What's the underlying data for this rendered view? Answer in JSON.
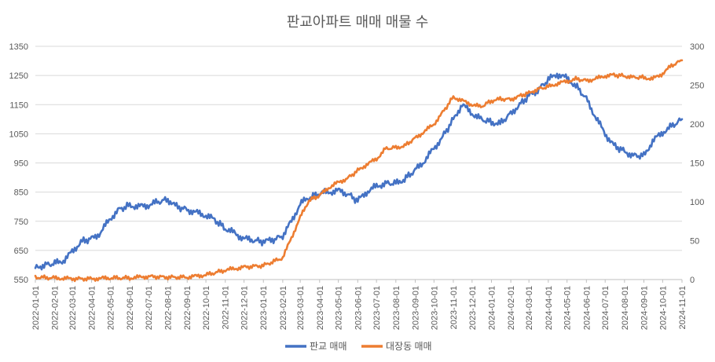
{
  "chart_data": {
    "type": "line",
    "title": "판교아파트 매매 매물 수",
    "legend_position": "bottom",
    "grid": true,
    "x_ticks": [
      "2022-01-01",
      "2022-02-01",
      "2022-03-01",
      "2022-04-01",
      "2022-05-01",
      "2022-06-01",
      "2022-07-01",
      "2022-08-01",
      "2022-09-01",
      "2022-10-01",
      "2022-11-01",
      "2022-12-01",
      "2023-01-01",
      "2023-02-01",
      "2023-03-01",
      "2023-04-01",
      "2023-05-01",
      "2023-06-01",
      "2023-07-01",
      "2023-08-01",
      "2023-09-01",
      "2023-10-01",
      "2023-11-01",
      "2023-12-01",
      "2024-01-01",
      "2024-02-01",
      "2024-03-01",
      "2024-04-01",
      "2024-05-01",
      "2024-06-01",
      "2024-07-01",
      "2024-08-01",
      "2024-09-01",
      "2024-10-01",
      "2024-11-01"
    ],
    "y_left": {
      "min": 550,
      "max": 1350,
      "ticks": [
        550,
        650,
        750,
        850,
        950,
        1050,
        1150,
        1250,
        1350
      ]
    },
    "y_right": {
      "min": 0,
      "max": 300,
      "ticks": [
        0,
        50,
        100,
        150,
        200,
        250,
        300
      ]
    },
    "series": [
      {
        "name": "판교 매매",
        "axis": "left",
        "color": "#4472C4",
        "points": [
          [
            "2022-01-01",
            590
          ],
          [
            "2022-01-15",
            600
          ],
          [
            "2022-02-01",
            605
          ],
          [
            "2022-02-15",
            615
          ],
          [
            "2022-03-01",
            645
          ],
          [
            "2022-03-15",
            680
          ],
          [
            "2022-04-01",
            690
          ],
          [
            "2022-04-15",
            710
          ],
          [
            "2022-05-01",
            760
          ],
          [
            "2022-05-15",
            790
          ],
          [
            "2022-06-01",
            805
          ],
          [
            "2022-06-15",
            800
          ],
          [
            "2022-07-01",
            805
          ],
          [
            "2022-07-15",
            815
          ],
          [
            "2022-08-01",
            825
          ],
          [
            "2022-08-15",
            800
          ],
          [
            "2022-09-01",
            790
          ],
          [
            "2022-09-15",
            780
          ],
          [
            "2022-10-01",
            770
          ],
          [
            "2022-10-15",
            755
          ],
          [
            "2022-11-01",
            725
          ],
          [
            "2022-11-15",
            710
          ],
          [
            "2022-12-01",
            690
          ],
          [
            "2022-12-15",
            685
          ],
          [
            "2023-01-01",
            680
          ],
          [
            "2023-01-15",
            685
          ],
          [
            "2023-02-01",
            700
          ],
          [
            "2023-02-15",
            750
          ],
          [
            "2023-03-01",
            810
          ],
          [
            "2023-03-15",
            830
          ],
          [
            "2023-04-01",
            845
          ],
          [
            "2023-04-15",
            850
          ],
          [
            "2023-05-01",
            855
          ],
          [
            "2023-05-15",
            845
          ],
          [
            "2023-06-01",
            820
          ],
          [
            "2023-06-15",
            850
          ],
          [
            "2023-07-01",
            870
          ],
          [
            "2023-07-15",
            880
          ],
          [
            "2023-08-01",
            880
          ],
          [
            "2023-08-15",
            895
          ],
          [
            "2023-09-01",
            925
          ],
          [
            "2023-09-15",
            955
          ],
          [
            "2023-10-01",
            1000
          ],
          [
            "2023-10-15",
            1040
          ],
          [
            "2023-11-01",
            1100
          ],
          [
            "2023-11-15",
            1150
          ],
          [
            "2023-12-01",
            1120
          ],
          [
            "2023-12-15",
            1100
          ],
          [
            "2024-01-01",
            1090
          ],
          [
            "2024-01-15",
            1085
          ],
          [
            "2024-02-01",
            1120
          ],
          [
            "2024-02-15",
            1150
          ],
          [
            "2024-03-01",
            1180
          ],
          [
            "2024-03-15",
            1200
          ],
          [
            "2024-04-01",
            1235
          ],
          [
            "2024-04-15",
            1255
          ],
          [
            "2024-05-01",
            1240
          ],
          [
            "2024-05-15",
            1215
          ],
          [
            "2024-06-01",
            1170
          ],
          [
            "2024-06-15",
            1110
          ],
          [
            "2024-07-01",
            1050
          ],
          [
            "2024-07-15",
            1010
          ],
          [
            "2024-08-01",
            990
          ],
          [
            "2024-08-15",
            975
          ],
          [
            "2024-09-01",
            975
          ],
          [
            "2024-09-15",
            1025
          ],
          [
            "2024-10-01",
            1055
          ],
          [
            "2024-10-15",
            1075
          ],
          [
            "2024-11-01",
            1100
          ]
        ]
      },
      {
        "name": "대장동 매매",
        "axis": "right",
        "color": "#ED7D31",
        "points": [
          [
            "2022-01-01",
            3
          ],
          [
            "2022-02-01",
            2
          ],
          [
            "2022-03-01",
            1
          ],
          [
            "2022-04-01",
            1
          ],
          [
            "2022-05-01",
            2
          ],
          [
            "2022-06-01",
            2
          ],
          [
            "2022-07-01",
            4
          ],
          [
            "2022-08-01",
            3
          ],
          [
            "2022-09-01",
            3
          ],
          [
            "2022-10-01",
            6
          ],
          [
            "2022-11-01",
            12
          ],
          [
            "2022-12-01",
            16
          ],
          [
            "2023-01-01",
            18
          ],
          [
            "2023-02-01",
            28
          ],
          [
            "2023-03-01",
            80
          ],
          [
            "2023-03-15",
            102
          ],
          [
            "2023-04-01",
            108
          ],
          [
            "2023-04-15",
            118
          ],
          [
            "2023-05-01",
            125
          ],
          [
            "2023-05-15",
            130
          ],
          [
            "2023-06-01",
            140
          ],
          [
            "2023-06-15",
            148
          ],
          [
            "2023-07-01",
            155
          ],
          [
            "2023-07-15",
            168
          ],
          [
            "2023-08-01",
            170
          ],
          [
            "2023-08-15",
            172
          ],
          [
            "2023-09-01",
            182
          ],
          [
            "2023-09-15",
            190
          ],
          [
            "2023-10-01",
            200
          ],
          [
            "2023-10-15",
            215
          ],
          [
            "2023-11-01",
            235
          ],
          [
            "2023-11-15",
            230
          ],
          [
            "2023-12-01",
            225
          ],
          [
            "2023-12-15",
            222
          ],
          [
            "2024-01-01",
            230
          ],
          [
            "2024-01-15",
            232
          ],
          [
            "2024-02-01",
            232
          ],
          [
            "2024-02-15",
            236
          ],
          [
            "2024-03-01",
            240
          ],
          [
            "2024-03-15",
            245
          ],
          [
            "2024-04-01",
            248
          ],
          [
            "2024-04-15",
            252
          ],
          [
            "2024-05-01",
            255
          ],
          [
            "2024-05-15",
            258
          ],
          [
            "2024-06-01",
            256
          ],
          [
            "2024-06-15",
            258
          ],
          [
            "2024-07-01",
            262
          ],
          [
            "2024-07-15",
            263
          ],
          [
            "2024-08-01",
            262
          ],
          [
            "2024-08-15",
            260
          ],
          [
            "2024-09-01",
            260
          ],
          [
            "2024-09-15",
            258
          ],
          [
            "2024-10-01",
            265
          ],
          [
            "2024-10-15",
            275
          ],
          [
            "2024-11-01",
            282
          ]
        ]
      }
    ]
  }
}
